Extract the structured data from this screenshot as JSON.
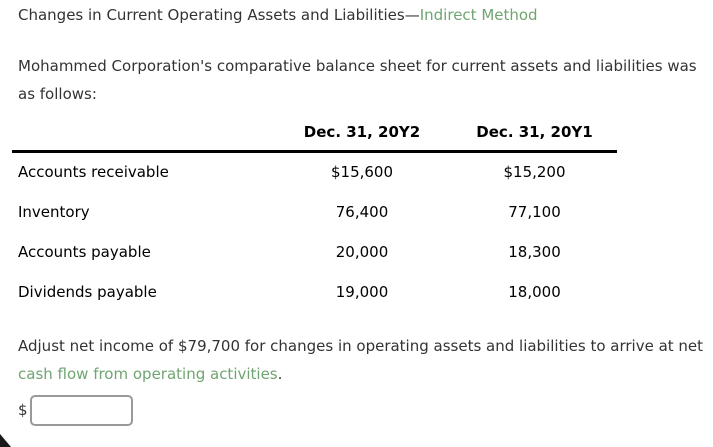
{
  "title": {
    "main": "Changes in Current Operating Assets and Liabilities—",
    "accent": "Indirect Method"
  },
  "intro": "Mohammed Corporation's comparative balance sheet for current assets and liabilities was as follows:",
  "table": {
    "headers": [
      "Dec. 31, 20Y2",
      "Dec. 31, 20Y1"
    ],
    "rows": [
      {
        "label": "Accounts receivable",
        "y2": "$15,600",
        "y1": "$15,200"
      },
      {
        "label": "Inventory",
        "y2": "76,400",
        "y1": "77,100"
      },
      {
        "label": "Accounts payable",
        "y2": "20,000",
        "y1": "18,300"
      },
      {
        "label": "Dividends payable",
        "y2": "19,000",
        "y1": "18,000"
      }
    ]
  },
  "instruction": {
    "before_link": "Adjust net income of $79,700 for changes in operating assets and liabilities to arrive at net ",
    "link": "cash flow from operating activities",
    "after_link": "."
  },
  "answer": {
    "currency_symbol": "$",
    "input_value": ""
  },
  "colors": {
    "accent_green": "#6fa571",
    "body_text": "#333333",
    "table_text": "#000000",
    "table_rule": "#000000",
    "input_border": "#999999"
  }
}
